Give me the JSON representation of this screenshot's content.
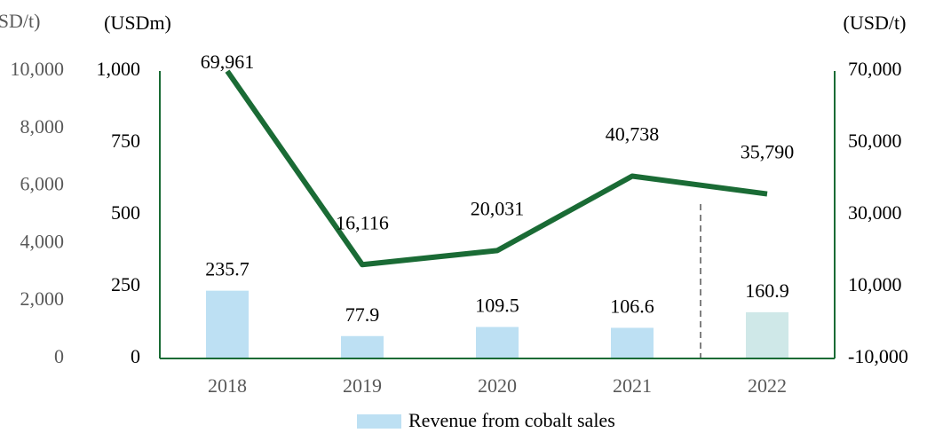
{
  "chart_data": {
    "type": "bar",
    "categories": [
      "2018",
      "2019",
      "2020",
      "2021",
      "2022"
    ],
    "series": [
      {
        "name": "Revenue from cobalt sales",
        "type": "bar",
        "color": "#bde0f3",
        "colors": [
          "#bde0f3",
          "#bde0f3",
          "#bde0f3",
          "#bde0f3",
          "#cfe8e8"
        ],
        "values": [
          235.7,
          77.9,
          109.5,
          106.6,
          160.9
        ]
      },
      {
        "type": "line",
        "axis": "y2",
        "color": "#1a6b35",
        "values": [
          69961,
          16116,
          20031,
          40738,
          35790
        ],
        "value_labels": [
          "69,961",
          "16,116",
          "20,031",
          "40,738",
          "35,790"
        ]
      }
    ],
    "ylabel": "(USDm)",
    "ylim": [
      0,
      1000
    ],
    "yticks": [
      0,
      250,
      500,
      750,
      {
        "value": 1000,
        "label": "1,000"
      }
    ],
    "y2label": "(USD/t)",
    "y2lim": [
      -10000,
      70000
    ],
    "y2ticks": [
      {
        "value": -10000,
        "label": "-10,000"
      },
      {
        "value": 10000,
        "label": "10,000"
      },
      {
        "value": 30000,
        "label": "30,000"
      },
      {
        "value": 50000,
        "label": "50,000"
      },
      {
        "value": 70000,
        "label": "70,000"
      }
    ],
    "y3label": "(USD/t)",
    "y3lim": [
      0,
      10000
    ],
    "y3ticks": [
      0,
      {
        "value": 2000,
        "label": "2,000"
      },
      {
        "value": 4000,
        "label": "4,000"
      },
      {
        "value": 6000,
        "label": "6,000"
      },
      {
        "value": 8000,
        "label": "8,000"
      },
      {
        "value": 10000,
        "label": "10,000"
      }
    ],
    "legend": "bottom"
  }
}
